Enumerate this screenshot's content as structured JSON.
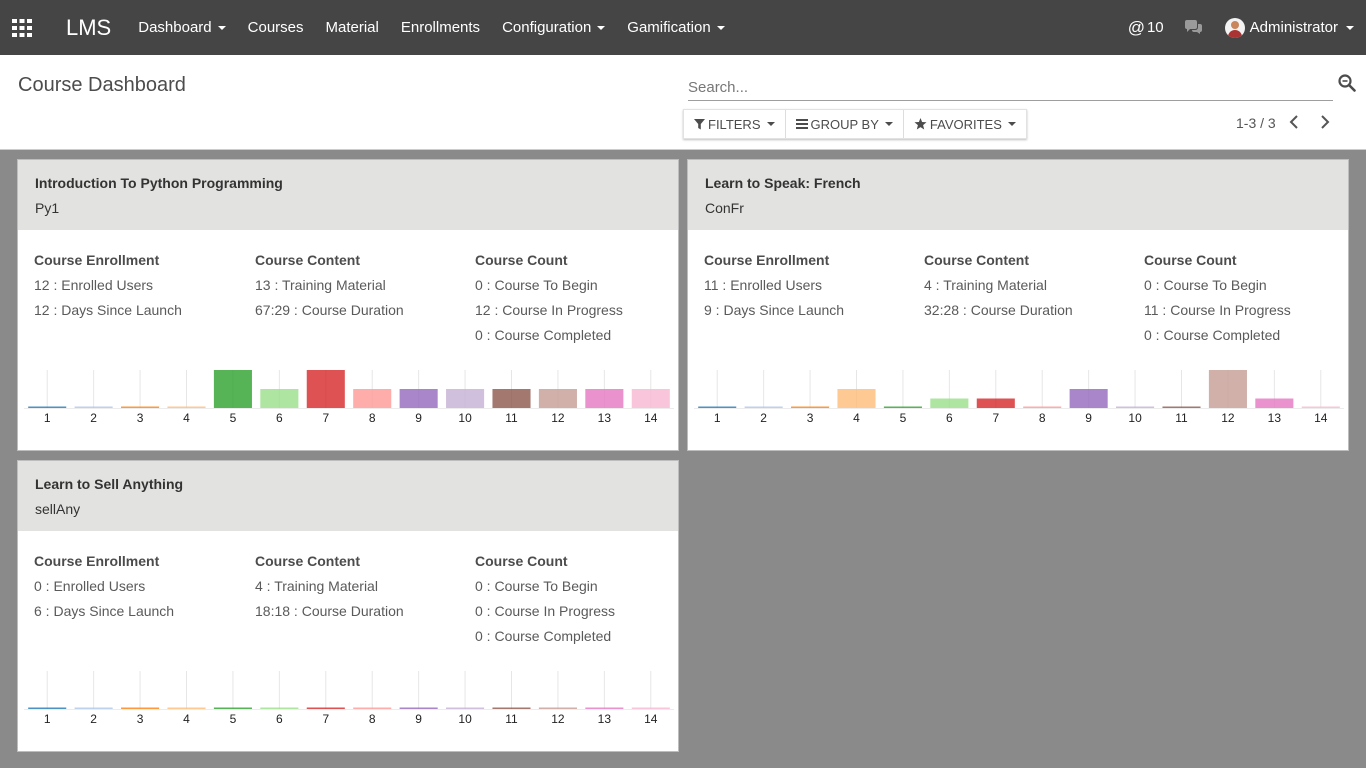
{
  "navbar": {
    "brand": "LMS",
    "menu": [
      {
        "label": "Dashboard",
        "dropdown": true
      },
      {
        "label": "Courses",
        "dropdown": false
      },
      {
        "label": "Material",
        "dropdown": false
      },
      {
        "label": "Enrollments",
        "dropdown": false
      },
      {
        "label": "Configuration",
        "dropdown": true
      },
      {
        "label": "Gamification",
        "dropdown": true
      }
    ],
    "mentions_count": "10",
    "user_name": "Administrator",
    "colors": {
      "navbar_bg": "#454545"
    }
  },
  "control_panel": {
    "title": "Course Dashboard",
    "search_placeholder": "Search...",
    "filters_label": "FILTERS",
    "groupby_label": "GROUP BY",
    "favorites_label": "FAVORITES",
    "pager_text": "1-3 / 3"
  },
  "labels": {
    "enrollment_heading": "Course Enrollment",
    "content_heading": "Course Content",
    "count_heading": "Course Count"
  },
  "chart_colors": [
    "#1f77b4",
    "#aec7e8",
    "#ff7f0e",
    "#ffbb78",
    "#2ca02c",
    "#98df8a",
    "#d62728",
    "#ff9896",
    "#9467bd",
    "#c5b0d5",
    "#8c564b",
    "#c49c94",
    "#e377c2",
    "#f7b6d2"
  ],
  "cards": [
    {
      "title": "Introduction To Python Programming",
      "code": "Py1",
      "enrollment": [
        "12 : Enrolled Users",
        "12 : Days Since Launch"
      ],
      "content": [
        "13 : Training Material",
        "67:29 : Course Duration"
      ],
      "count": [
        "0 : Course To Begin",
        "12 : Course In Progress",
        "0 : Course Completed"
      ],
      "chart_data": {
        "type": "bar",
        "categories": [
          "1",
          "2",
          "3",
          "4",
          "5",
          "6",
          "7",
          "8",
          "9",
          "10",
          "11",
          "12",
          "13",
          "14"
        ],
        "values": [
          0,
          0,
          0,
          0,
          1,
          0.5,
          1,
          0.5,
          0.5,
          0.5,
          0.5,
          0.5,
          0.5,
          0.5
        ],
        "ylim": [
          0,
          1
        ]
      }
    },
    {
      "title": "Learn to Speak: French",
      "code": "ConFr",
      "enrollment": [
        "11 : Enrolled Users",
        "9 : Days Since Launch"
      ],
      "content": [
        "4 : Training Material",
        "32:28 : Course Duration"
      ],
      "count": [
        "0 : Course To Begin",
        "11 : Course In Progress",
        "0 : Course Completed"
      ],
      "chart_data": {
        "type": "bar",
        "categories": [
          "1",
          "2",
          "3",
          "4",
          "5",
          "6",
          "7",
          "8",
          "9",
          "10",
          "11",
          "12",
          "13",
          "14"
        ],
        "values": [
          0,
          0,
          0,
          0.5,
          0,
          0.25,
          0.25,
          0,
          0.5,
          0,
          0,
          1,
          0.25,
          0
        ],
        "ylim": [
          0,
          1
        ]
      }
    },
    {
      "title": "Learn to Sell Anything",
      "code": "sellAny",
      "enrollment": [
        "0 : Enrolled Users",
        "6 : Days Since Launch"
      ],
      "content": [
        "4 : Training Material",
        "18:18 : Course Duration"
      ],
      "count": [
        "0 : Course To Begin",
        "0 : Course In Progress",
        "0 : Course Completed"
      ],
      "chart_data": {
        "type": "bar",
        "categories": [
          "1",
          "2",
          "3",
          "4",
          "5",
          "6",
          "7",
          "8",
          "9",
          "10",
          "11",
          "12",
          "13",
          "14"
        ],
        "values": [
          0,
          0,
          0,
          0,
          0,
          0,
          0,
          0,
          0,
          0,
          0,
          0,
          0,
          0
        ],
        "ylim": [
          0,
          1
        ]
      }
    }
  ]
}
